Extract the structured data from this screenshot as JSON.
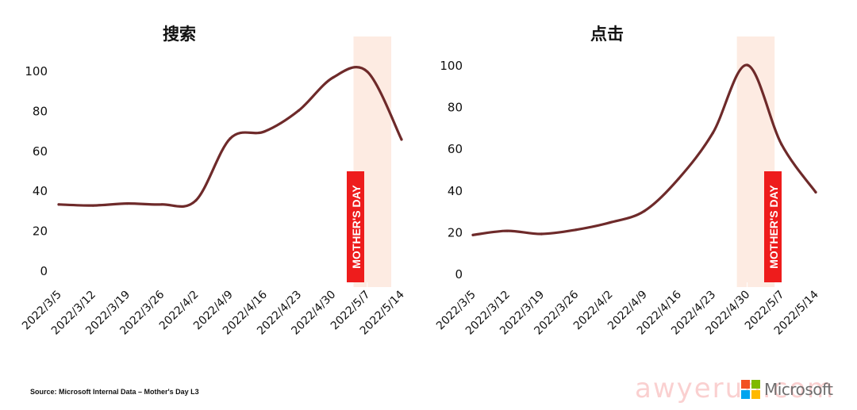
{
  "chart_data": [
    {
      "type": "line",
      "title": "搜索",
      "categories": [
        "2022/3/5",
        "2022/3/12",
        "2022/3/19",
        "2022/3/26",
        "2022/4/2",
        "2022/4/9",
        "2022/4/16",
        "2022/4/23",
        "2022/4/30",
        "2022/5/7",
        "2022/5/14"
      ],
      "yticks": [
        0,
        20,
        40,
        60,
        80,
        100
      ],
      "ylim": [
        0,
        100
      ],
      "series": [
        {
          "values": [
            33,
            32.5,
            33.5,
            33,
            35,
            66,
            69.5,
            80,
            96.5,
            99.5,
            65.5
          ]
        }
      ],
      "highlight": {
        "label": "MOTHER'S DAY"
      },
      "grid": false
    },
    {
      "type": "line",
      "title": "点击",
      "categories": [
        "2022/3/5",
        "2022/3/12",
        "2022/3/19",
        "2022/3/26",
        "2022/4/2",
        "2022/4/9",
        "2022/4/16",
        "2022/4/23",
        "2022/4/30",
        "2022/5/7",
        "2022/5/14"
      ],
      "yticks": [
        0,
        20,
        40,
        60,
        80,
        100
      ],
      "ylim": [
        0,
        100
      ],
      "series": [
        {
          "values": [
            18.5,
            20.5,
            19,
            21,
            24.5,
            30,
            45.5,
            67.5,
            100,
            62,
            39
          ]
        }
      ],
      "highlight": {
        "label": "MOTHER'S DAY"
      },
      "grid": false
    }
  ],
  "colors": {
    "line": "#6e2a2a",
    "highlight_band": "#fdebe2",
    "label_bg": "#ee1c1c",
    "label_text": "#ffffff"
  },
  "footer": {
    "source": "Source: Microsoft Internal Data – Mother's Day L3"
  },
  "watermark": "awyerun.com",
  "brand": {
    "name": "Microsoft",
    "logo_colors": [
      "#f25022",
      "#7fba00",
      "#00a4ef",
      "#ffb900"
    ]
  }
}
